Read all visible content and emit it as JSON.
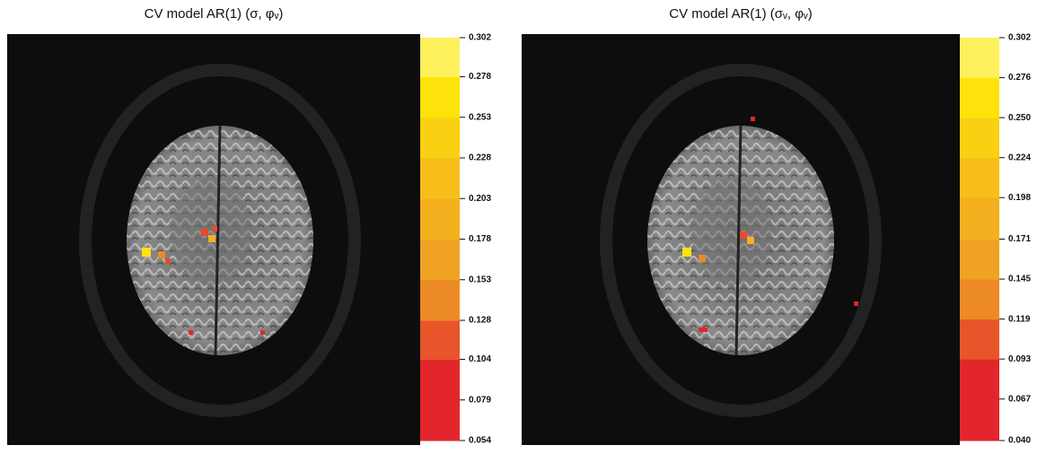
{
  "panels": [
    {
      "title": "CV model AR(1) (σ, φᵥ)",
      "colors": [
        "#e3262b",
        "#e3262b",
        "#e8552a",
        "#ec8a25",
        "#f0a323",
        "#f4b01f",
        "#f7be1a",
        "#fad012",
        "#fde30a",
        "#fdf05a"
      ],
      "ticks": [
        0.054,
        0.079,
        0.104,
        0.128,
        0.153,
        0.178,
        0.203,
        0.228,
        0.253,
        0.278,
        0.302
      ]
    },
    {
      "title": "CV model AR(1) (σᵥ, φᵥ)",
      "colors": [
        "#e3262b",
        "#e3262b",
        "#e8552a",
        "#ec8a25",
        "#f0a323",
        "#f4b01f",
        "#f7be1a",
        "#fad012",
        "#fde30a",
        "#fdf05a"
      ],
      "ticks": [
        {
          "value": 0.04,
          "label": "0.040"
        },
        0.067,
        0.093,
        0.119,
        0.145,
        0.171,
        0.198,
        0.224,
        {
          "value": 0.25,
          "label": "0.250"
        },
        0.276,
        0.302
      ]
    }
  ]
}
